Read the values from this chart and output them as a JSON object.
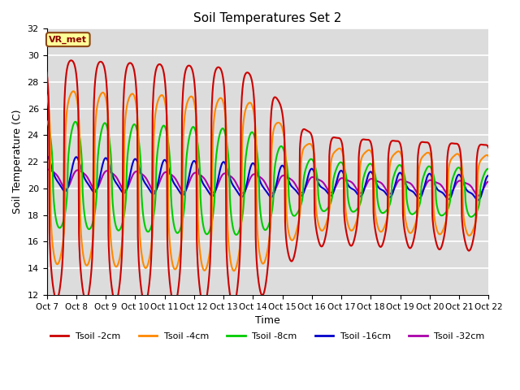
{
  "title": "Soil Temperatures Set 2",
  "xlabel": "Time",
  "ylabel": "Soil Temperature (C)",
  "ylim": [
    12,
    32
  ],
  "xlim": [
    0,
    360
  ],
  "background_color": "#dcdcdc",
  "figure_color": "#ffffff",
  "annotation_label": "VR_met",
  "xtick_labels": [
    "Oct 7",
    "Oct 8",
    "Oct 9",
    "Oct 10",
    "Oct 11",
    "Oct 12",
    "Oct 13",
    "Oct 14",
    "Oct 15",
    "Oct 16",
    "Oct 17",
    "Oct 18",
    "Oct 19",
    "Oct 20",
    "Oct 21",
    "Oct 22"
  ],
  "xtick_positions": [
    0,
    24,
    48,
    72,
    96,
    120,
    144,
    168,
    192,
    216,
    240,
    264,
    288,
    312,
    336,
    360
  ],
  "ytick_values": [
    12,
    14,
    16,
    18,
    20,
    22,
    24,
    26,
    28,
    30,
    32
  ],
  "line_colors": {
    "Tsoil -2cm": "#cc0000",
    "Tsoil -4cm": "#ff8800",
    "Tsoil -8cm": "#00cc00",
    "Tsoil -16cm": "#0000cc",
    "Tsoil -32cm": "#aa00aa"
  },
  "legend_labels": [
    "Tsoil -2cm",
    "Tsoil -4cm",
    "Tsoil -8cm",
    "Tsoil -16cm",
    "Tsoil -32cm"
  ],
  "grid_color": "#ffffff",
  "line_width": 1.5
}
